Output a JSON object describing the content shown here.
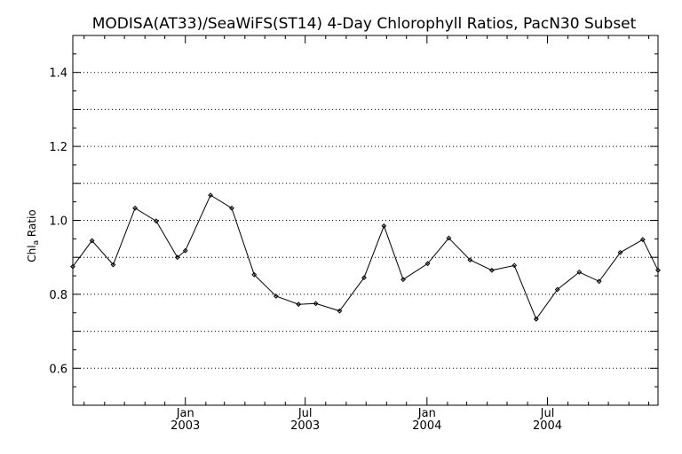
{
  "chart_data": {
    "type": "line",
    "title": "MODISA(AT33)/SeaWiFS(ST14) 4-Day Chlorophyll Ratios, PacN30 Subset",
    "xlabel": "",
    "ylabel_main": "Chl",
    "ylabel_sub": "a",
    "ylabel_tail": " Ratio",
    "x_axis": {
      "min": "2002-07-15",
      "max": "2004-12-15",
      "major_ticks": [
        {
          "date": "2003-01-01",
          "line1": "Jan",
          "line2": "2003"
        },
        {
          "date": "2003-07-01",
          "line1": "Jul",
          "line2": "2003"
        },
        {
          "date": "2004-01-01",
          "line1": "Jan",
          "line2": "2004"
        },
        {
          "date": "2004-07-01",
          "line1": "Jul",
          "line2": "2004"
        }
      ],
      "minor_ticks": [
        "2002-08-01",
        "2002-09-01",
        "2002-10-01",
        "2002-11-01",
        "2002-12-01",
        "2003-02-01",
        "2003-03-01",
        "2003-04-01",
        "2003-05-01",
        "2003-06-01",
        "2003-08-01",
        "2003-09-01",
        "2003-10-01",
        "2003-11-01",
        "2003-12-01",
        "2004-02-01",
        "2004-03-01",
        "2004-04-01",
        "2004-05-01",
        "2004-06-01",
        "2004-08-01",
        "2004-09-01",
        "2004-10-01",
        "2004-11-01",
        "2004-12-01"
      ]
    },
    "y_axis": {
      "min": 0.5,
      "max": 1.5,
      "labeled_ticks": [
        {
          "value": 0.6,
          "label": "0.6"
        },
        {
          "value": 0.8,
          "label": "0.8"
        },
        {
          "value": 1.0,
          "label": "1.0"
        },
        {
          "value": 1.2,
          "label": "1.2"
        },
        {
          "value": 1.4,
          "label": "1.4"
        }
      ],
      "gridlines": [
        0.6,
        0.7,
        0.8,
        0.9,
        1.0,
        1.1,
        1.2,
        1.3,
        1.4
      ],
      "minor_ticks": [
        0.55,
        0.65,
        0.75,
        0.85,
        0.95,
        1.05,
        1.15,
        1.25,
        1.35,
        1.45
      ]
    },
    "grid": "horizontal-dotted",
    "series": [
      {
        "points": [
          {
            "x": "2002-07-15",
            "y": 0.875
          },
          {
            "x": "2002-08-13",
            "y": 0.945
          },
          {
            "x": "2002-09-14",
            "y": 0.88
          },
          {
            "x": "2002-10-17",
            "y": 1.033
          },
          {
            "x": "2002-11-18",
            "y": 0.998
          },
          {
            "x": "2002-12-20",
            "y": 0.9
          },
          {
            "x": "2003-01-01",
            "y": 0.918
          },
          {
            "x": "2003-02-08",
            "y": 1.068
          },
          {
            "x": "2003-03-12",
            "y": 1.033
          },
          {
            "x": "2003-04-15",
            "y": 0.853
          },
          {
            "x": "2003-05-18",
            "y": 0.795
          },
          {
            "x": "2003-06-21",
            "y": 0.773
          },
          {
            "x": "2003-07-17",
            "y": 0.775
          },
          {
            "x": "2003-08-22",
            "y": 0.755
          },
          {
            "x": "2003-09-28",
            "y": 0.845
          },
          {
            "x": "2003-10-28",
            "y": 0.985
          },
          {
            "x": "2003-11-26",
            "y": 0.84
          },
          {
            "x": "2004-01-02",
            "y": 0.883
          },
          {
            "x": "2004-02-03",
            "y": 0.952
          },
          {
            "x": "2004-03-06",
            "y": 0.893
          },
          {
            "x": "2004-04-08",
            "y": 0.865
          },
          {
            "x": "2004-05-12",
            "y": 0.878
          },
          {
            "x": "2004-06-14",
            "y": 0.733
          },
          {
            "x": "2004-07-16",
            "y": 0.813
          },
          {
            "x": "2004-08-18",
            "y": 0.86
          },
          {
            "x": "2004-09-17",
            "y": 0.835
          },
          {
            "x": "2004-10-19",
            "y": 0.913
          },
          {
            "x": "2004-11-22",
            "y": 0.948
          },
          {
            "x": "2004-12-15",
            "y": 0.865
          }
        ]
      }
    ]
  }
}
